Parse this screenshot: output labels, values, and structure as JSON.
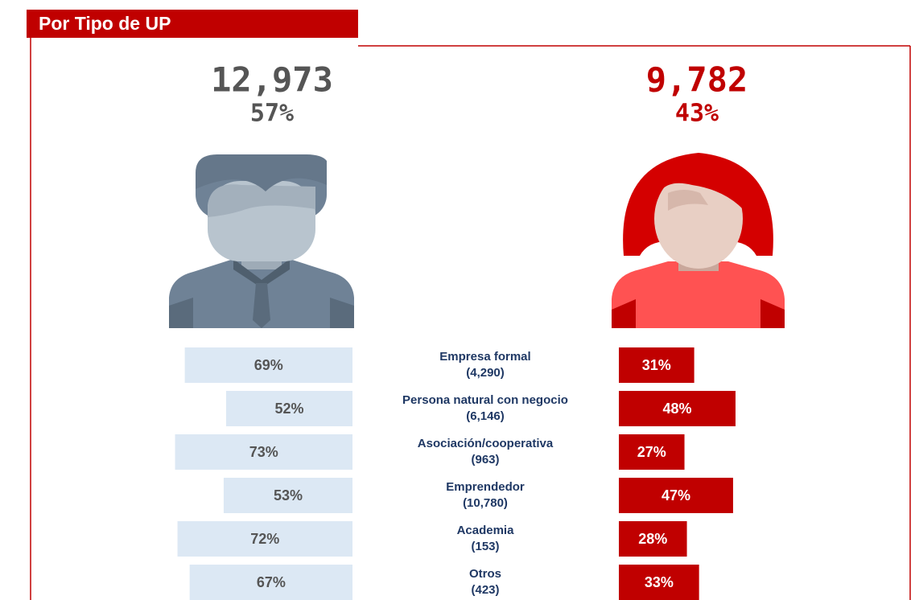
{
  "header": {
    "title": "Por Tipo de UP"
  },
  "chart_data": {
    "type": "butterfly",
    "categories": [
      "Empresa formal",
      "Persona natural con negocio",
      "Asociación/cooperativa",
      "Emprendedor",
      "Academia",
      "Otros"
    ],
    "counts": [
      4290,
      6146,
      963,
      10780,
      153,
      423
    ],
    "count_labels": [
      "(4,290)",
      "(6,146)",
      "(963)",
      "(10,780)",
      "(153)",
      "(423)"
    ],
    "series": [
      {
        "color": "#dce8f4",
        "text_color": "#555555",
        "total": 12973,
        "total_label": "12,973",
        "share": 57,
        "share_label": "57%",
        "values": [
          69,
          52,
          73,
          53,
          72,
          67
        ],
        "value_labels": [
          "69%",
          "52%",
          "73%",
          "53%",
          "72%",
          "67%"
        ]
      },
      {
        "color": "#c00000",
        "text_color": "#ffffff",
        "total": 9782,
        "total_label": "9,782",
        "share": 43,
        "share_label": "43%",
        "values": [
          31,
          48,
          27,
          47,
          28,
          33
        ],
        "value_labels": [
          "31%",
          "48%",
          "27%",
          "47%",
          "28%",
          "33%"
        ]
      }
    ]
  }
}
